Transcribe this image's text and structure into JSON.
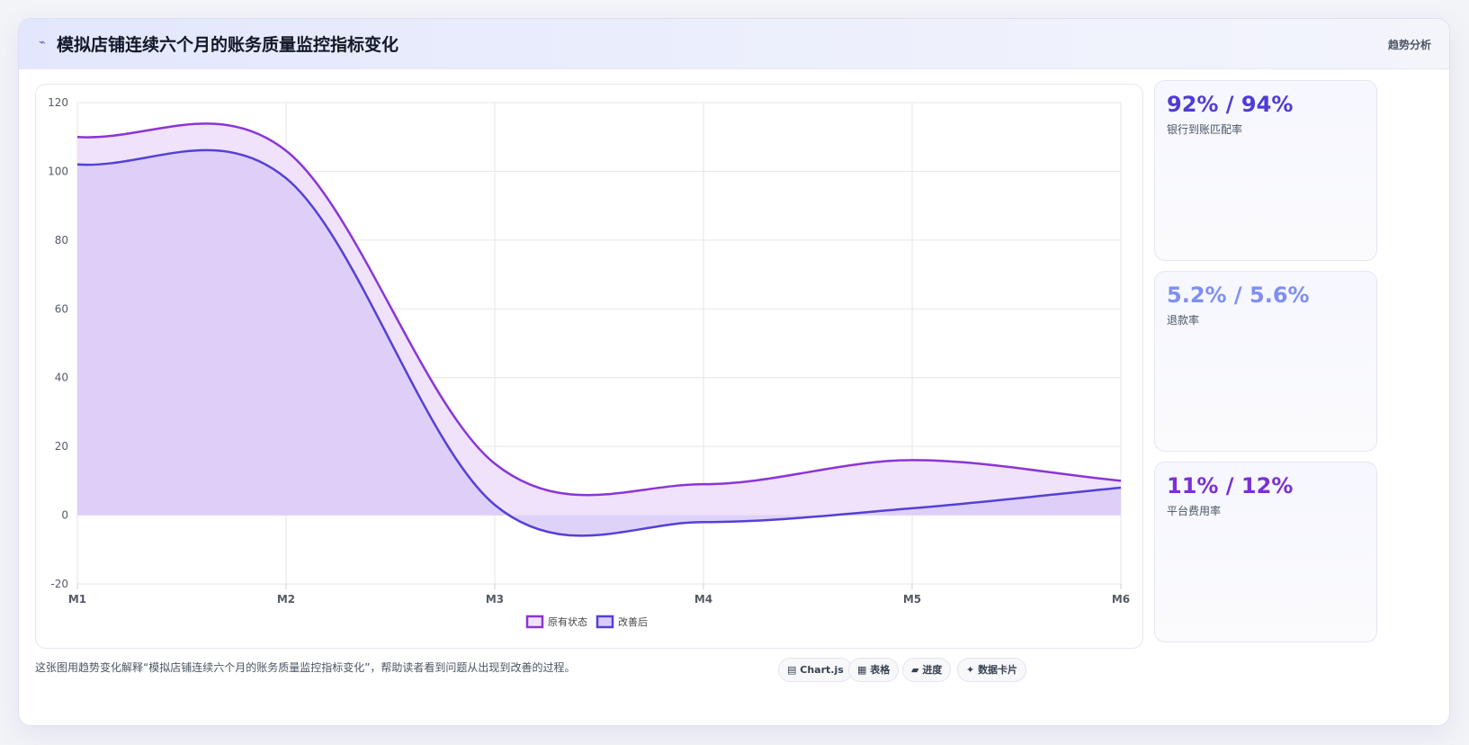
{
  "header": {
    "icon": "⌁",
    "title": "模拟店铺连续六个月的账务质量监控指标变化",
    "right_label": "趋势分析"
  },
  "stats": [
    {
      "value": "92% / 94%",
      "label": "银行到账匹配率",
      "color": "#4f3bd6"
    },
    {
      "value": "5.2% / 5.6%",
      "label": "退款率",
      "color": "#7f8ff0"
    },
    {
      "value": "11% / 12%",
      "label": "平台费用率",
      "color": "#7b2fd6"
    }
  ],
  "footer": {
    "text": "这张图用趋势变化解释“模拟店铺连续六个月的账务质量监控指标变化”，帮助读者看到问题从出现到改善的过程。",
    "chips": [
      {
        "icon": "▤",
        "label": "Chart.js"
      },
      {
        "icon": "▦",
        "label": "表格"
      },
      {
        "icon": "▰",
        "label": "进度"
      },
      {
        "icon": "✦",
        "label": "数据卡片"
      }
    ]
  },
  "chart_data": {
    "type": "area",
    "categories": [
      "M1",
      "M2",
      "M3",
      "M4",
      "M5",
      "M6"
    ],
    "series": [
      {
        "name": "原有状态",
        "values": [
          110,
          106,
          15,
          9,
          16,
          10
        ],
        "color": "#8b35d6",
        "fill": "#efe2fa"
      },
      {
        "name": "改善后",
        "values": [
          102,
          98,
          3,
          -2,
          2,
          8
        ],
        "color": "#5440d6",
        "fill": "#dccdf8"
      }
    ],
    "ylim": [
      -20,
      120
    ],
    "yticks": [
      -20,
      0,
      20,
      40,
      60,
      80,
      100,
      120
    ],
    "grid": true,
    "legend_position": "bottom-center"
  }
}
